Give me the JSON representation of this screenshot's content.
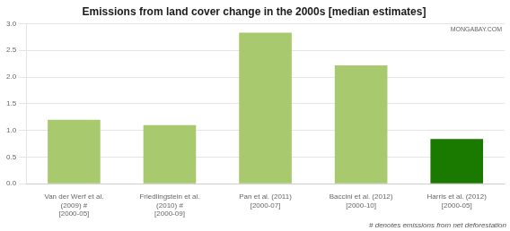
{
  "chart_data": {
    "type": "bar",
    "title": "Emissions from land cover change in the 2000s [median estimates]",
    "categories": [
      "Van der Werf et al. (2009) #\n[2000-05]",
      "Friedlingstein et al. (2010) #\n[2000-09]",
      "Pan et al. (2011)\n[2000-07]",
      "Baccini et al. (2012)\n[2000-10]",
      "Harris et al. (2012)\n[2000-05]"
    ],
    "values": [
      1.2,
      1.1,
      2.83,
      2.22,
      0.84
    ],
    "colors": [
      "#a8c96e",
      "#a8c96e",
      "#a8c96e",
      "#a8c96e",
      "#1a7a00"
    ],
    "ylim": [
      0,
      3.0
    ],
    "yticks": [
      {
        "value": 0,
        "label": "0.0"
      },
      0.5,
      {
        "value": 1,
        "label": "1.0"
      },
      1.5,
      {
        "value": 2,
        "label": "2.0"
      },
      2.5,
      {
        "value": 3,
        "label": "3.0"
      }
    ],
    "grid": true,
    "annotations": [
      "MONGABAY.COM",
      "# denotes emissions from net deforestation"
    ]
  }
}
